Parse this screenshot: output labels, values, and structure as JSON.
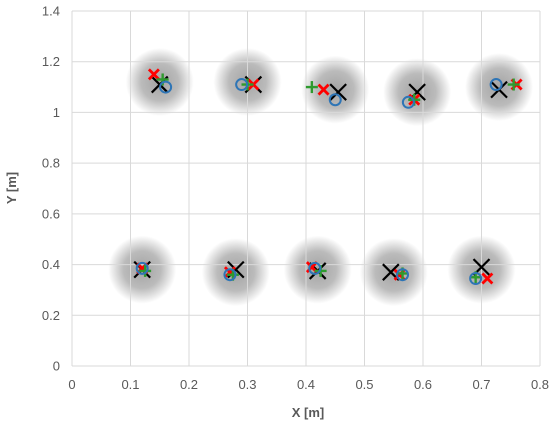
{
  "chart_data": {
    "type": "scatter",
    "xlabel": "X [m]",
    "ylabel": "Y [m]",
    "xlim": [
      0,
      0.8
    ],
    "ylim": [
      0,
      1.4
    ],
    "x_ticks": [
      "0",
      "0.1",
      "0.2",
      "0.3",
      "0.4",
      "0.5",
      "0.6",
      "0.7",
      "0.8"
    ],
    "y_ticks": [
      "0",
      "0.2",
      "0.4",
      "0.6",
      "0.8",
      "1",
      "1.2",
      "1.4"
    ],
    "grid": true,
    "colors": {
      "grid": "#d9d9d9",
      "zone": "#9e9e9e",
      "black_x": "#000000",
      "red_x": "#ff0000",
      "green_plus": "#2e9a2e",
      "blue_circle": "#2e75b6"
    },
    "zones": [
      {
        "x": 0.15,
        "y": 1.12
      },
      {
        "x": 0.3,
        "y": 1.12
      },
      {
        "x": 0.45,
        "y": 1.09
      },
      {
        "x": 0.59,
        "y": 1.08
      },
      {
        "x": 0.73,
        "y": 1.1
      },
      {
        "x": 0.12,
        "y": 0.38
      },
      {
        "x": 0.28,
        "y": 0.37
      },
      {
        "x": 0.42,
        "y": 0.38
      },
      {
        "x": 0.55,
        "y": 0.37
      },
      {
        "x": 0.7,
        "y": 0.38
      }
    ],
    "series": [
      {
        "marker": "x-black",
        "x": [
          0.15,
          0.31,
          0.455,
          0.59,
          0.73,
          0.12,
          0.28,
          0.42,
          0.545,
          0.7
        ],
        "y": [
          1.11,
          1.11,
          1.08,
          1.08,
          1.09,
          0.38,
          0.38,
          0.375,
          0.37,
          0.39
        ]
      },
      {
        "marker": "x-red",
        "x": [
          0.14,
          0.31,
          0.43,
          0.585,
          0.76,
          0.12,
          0.27,
          0.41,
          0.56,
          0.71
        ],
        "y": [
          1.15,
          1.11,
          1.09,
          1.05,
          1.11,
          0.385,
          0.37,
          0.39,
          0.36,
          0.345
        ]
      },
      {
        "marker": "plus-green",
        "x": [
          0.155,
          0.3,
          0.41,
          0.585,
          0.755,
          0.125,
          0.275,
          0.425,
          0.565,
          0.69
        ],
        "y": [
          1.13,
          1.11,
          1.1,
          1.05,
          1.11,
          0.375,
          0.36,
          0.375,
          0.365,
          0.35
        ]
      },
      {
        "marker": "circle-blue",
        "x": [
          0.16,
          0.29,
          0.45,
          0.575,
          0.725,
          0.12,
          0.27,
          0.415,
          0.565,
          0.69
        ],
        "y": [
          1.1,
          1.11,
          1.05,
          1.04,
          1.11,
          0.385,
          0.36,
          0.385,
          0.36,
          0.345
        ]
      }
    ]
  }
}
